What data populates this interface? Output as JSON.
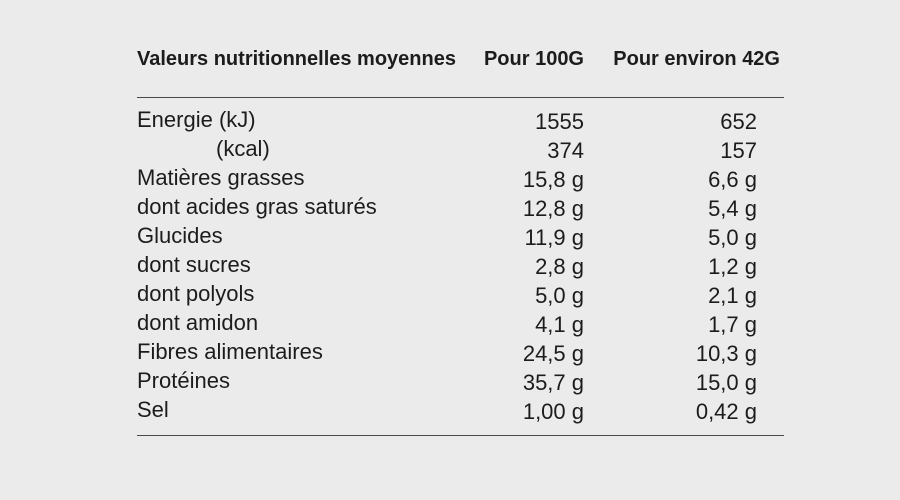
{
  "page": {
    "background_color": "#ebebeb",
    "text_color": "#1c1c1c",
    "rule_color": "#4a4a4a"
  },
  "table": {
    "title": "Valeurs nutritionnelles moyennes",
    "col_per_100": "Pour 100G",
    "col_per_portion": "Pour environ 42G",
    "rows": [
      {
        "label": "Energie (kJ)",
        "indent": false,
        "per_100g": "1555",
        "per_42g": "652"
      },
      {
        "label": "(kcal)",
        "indent": true,
        "per_100g": "374",
        "per_42g": "157"
      },
      {
        "label": "Matières grasses",
        "indent": false,
        "per_100g": "15,8 g",
        "per_42g": "6,6 g"
      },
      {
        "label": "dont acides gras saturés",
        "indent": false,
        "per_100g": "12,8 g",
        "per_42g": "5,4 g"
      },
      {
        "label": "Glucides",
        "indent": false,
        "per_100g": "11,9 g",
        "per_42g": "5,0 g"
      },
      {
        "label": "dont sucres",
        "indent": false,
        "per_100g": "2,8 g",
        "per_42g": "1,2 g"
      },
      {
        "label": "dont polyols",
        "indent": false,
        "per_100g": "5,0 g",
        "per_42g": "2,1 g"
      },
      {
        "label": "dont amidon",
        "indent": false,
        "per_100g": "4,1 g",
        "per_42g": "1,7 g"
      },
      {
        "label": "Fibres alimentaires",
        "indent": false,
        "per_100g": "24,5 g",
        "per_42g": "10,3 g"
      },
      {
        "label": "Protéines",
        "indent": false,
        "per_100g": "35,7 g",
        "per_42g": "15,0 g"
      },
      {
        "label": "Sel",
        "indent": false,
        "per_100g": "1,00 g",
        "per_42g": "0,42 g"
      }
    ]
  },
  "chart_data": {
    "type": "table",
    "title": "Valeurs nutritionnelles moyennes",
    "columns": [
      "Valeurs nutritionnelles moyennes",
      "Pour 100G",
      "Pour environ 42G"
    ],
    "categories": [
      "Energie (kJ)",
      "Energie (kcal)",
      "Matières grasses",
      "dont acides gras saturés",
      "Glucides",
      "dont sucres",
      "dont polyols",
      "dont amidon",
      "Fibres alimentaires",
      "Protéines",
      "Sel"
    ],
    "series": [
      {
        "name": "Pour 100G",
        "values": [
          1555,
          374,
          15.8,
          12.8,
          11.9,
          2.8,
          5.0,
          4.1,
          24.5,
          35.7,
          1.0
        ]
      },
      {
        "name": "Pour environ 42G",
        "values": [
          652,
          157,
          6.6,
          5.4,
          5.0,
          1.2,
          2.1,
          1.7,
          10.3,
          15.0,
          0.42
        ]
      }
    ],
    "units": {
      "energy_rows": [
        "kJ",
        "kcal"
      ],
      "other_rows": "g",
      "decimal_separator": ","
    },
    "layout": {
      "grid": "off",
      "rules": [
        "below header",
        "below last row"
      ],
      "value_alignment": "right"
    }
  }
}
